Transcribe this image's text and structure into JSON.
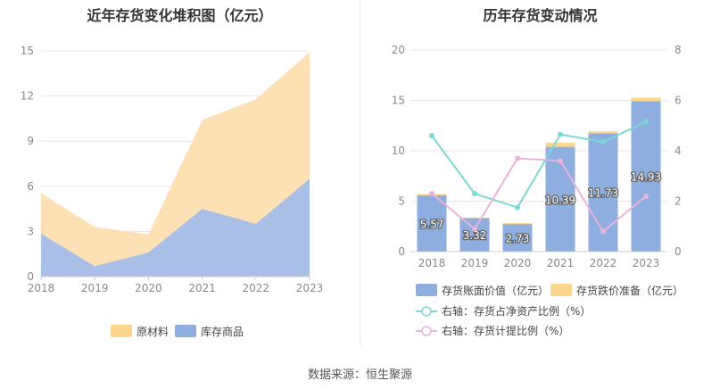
{
  "source_text": "数据来源：恒生聚源",
  "chart_data": [
    {
      "type": "area",
      "title": "近年存货变化堆积图（亿元）",
      "x": [
        "2018",
        "2019",
        "2020",
        "2021",
        "2022",
        "2023"
      ],
      "ylim": [
        0,
        15
      ],
      "yticks": [
        "0",
        "3",
        "6",
        "9",
        "12",
        "15"
      ],
      "stacked": true,
      "grid": true,
      "legend_position": "bottom",
      "series": [
        {
          "name": "库存商品",
          "values": [
            2.85,
            0.7,
            1.6,
            4.5,
            3.5,
            6.5
          ],
          "color": "#a9bfe6"
        },
        {
          "name": "原材料",
          "values": [
            2.7,
            2.6,
            1.2,
            5.9,
            8.3,
            8.4
          ],
          "color": "#fde0b3"
        }
      ],
      "legend_colors": {
        "原材料": "#fcd68d",
        "库存商品": "#8eaee0"
      }
    },
    {
      "type": "bar",
      "title": "历年存货变动情况",
      "categories": [
        "2018",
        "2019",
        "2020",
        "2021",
        "2022",
        "2023"
      ],
      "ylim": [
        0,
        20
      ],
      "yticks": [
        "0",
        "5",
        "10",
        "15",
        "20"
      ],
      "y2lim": [
        0,
        8
      ],
      "y2ticks": [
        "0",
        "2",
        "4",
        "6",
        "8"
      ],
      "grid": true,
      "legend_position": "bottom",
      "series": [
        {
          "name": "存货账面价值（亿元）",
          "kind": "bar",
          "axis": "left",
          "values": [
            5.57,
            3.32,
            2.73,
            10.39,
            11.73,
            14.93
          ],
          "labels": [
            "5.57",
            "3.32",
            "2.73",
            "10.39",
            "11.73",
            "14.93"
          ],
          "color": "#8eaee0"
        },
        {
          "name": "存货跌价准备（亿元）",
          "kind": "bar",
          "axis": "left",
          "values": [
            0.15,
            0.05,
            0.1,
            0.4,
            0.2,
            0.35
          ],
          "color": "#fcd68d"
        },
        {
          "name": "右轴：存货占净资产比例（%）",
          "kind": "line",
          "axis": "right",
          "values": [
            4.6,
            2.3,
            1.75,
            4.65,
            4.35,
            5.15
          ],
          "color": "#7dd8d5"
        },
        {
          "name": "右轴：存货计提比例（%）",
          "kind": "line",
          "axis": "right",
          "values": [
            2.3,
            0.9,
            3.7,
            3.6,
            0.8,
            2.2
          ],
          "color": "#e9b3dc"
        }
      ]
    }
  ]
}
